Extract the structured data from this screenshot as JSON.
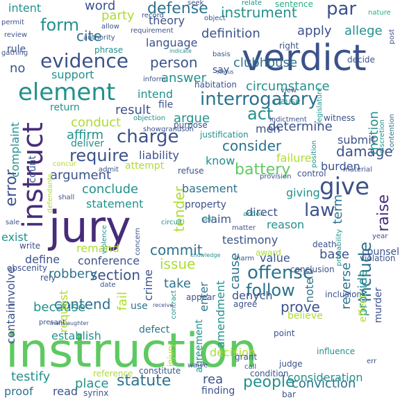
{
  "colors": {
    "background": "#ffffff",
    "palette": [
      "#440154",
      "#472c7a",
      "#3b528b",
      "#2c728e",
      "#21918c",
      "#28ae80",
      "#5ec962",
      "#addc30",
      "#fde725"
    ]
  },
  "words": [
    {
      "text": "instruction",
      "color": "#5ec962"
    },
    {
      "text": "verdict",
      "color": "#3b528b"
    },
    {
      "text": "jury",
      "color": "#472c7a"
    },
    {
      "text": "element",
      "color": "#21918c"
    },
    {
      "text": "interrogatory",
      "color": "#2c728e"
    },
    {
      "text": "instruct",
      "color": "#472c7a"
    },
    {
      "text": "evidence",
      "color": "#3b528b"
    },
    {
      "text": "charge",
      "color": "#3b528b"
    },
    {
      "text": "offense",
      "color": "#2c728e"
    },
    {
      "text": "give",
      "color": "#3b528b"
    },
    {
      "text": "require",
      "color": "#3b528b"
    },
    {
      "text": "follow",
      "color": "#2c728e"
    },
    {
      "text": "statute",
      "color": "#2c728e"
    },
    {
      "text": "include",
      "color": "#2c728e"
    },
    {
      "text": "form",
      "color": "#21918c"
    },
    {
      "text": "defense",
      "color": "#2c728e"
    },
    {
      "text": "party",
      "color": "#addc30"
    },
    {
      "text": "par",
      "color": "#3b528b"
    },
    {
      "text": "instrument",
      "color": "#21918c"
    },
    {
      "text": "error",
      "color": "#3b528b"
    },
    {
      "text": "section",
      "color": "#3b528b"
    },
    {
      "text": "battery",
      "color": "#5ec962"
    },
    {
      "text": "consider",
      "color": "#2c728e"
    },
    {
      "text": "person",
      "color": "#3b528b"
    },
    {
      "text": "issue",
      "color": "#addc30"
    },
    {
      "text": "people",
      "color": "#21918c"
    },
    {
      "text": "law",
      "color": "#3b528b"
    },
    {
      "text": "act",
      "color": "#21918c"
    },
    {
      "text": "conviction",
      "color": "#2c728e"
    },
    {
      "text": "determine",
      "color": "#3b528b"
    },
    {
      "text": "damage",
      "color": "#3b528b"
    },
    {
      "text": "tender",
      "color": "#addc30"
    },
    {
      "text": "commit",
      "color": "#2c728e"
    },
    {
      "text": "contend",
      "color": "#2c728e"
    },
    {
      "text": "prove",
      "color": "#3b528b"
    },
    {
      "text": "cause",
      "color": "#2c728e"
    },
    {
      "text": "raise",
      "color": "#472c7a"
    },
    {
      "text": "clubhouse",
      "color": "#2c728e"
    },
    {
      "text": "definition",
      "color": "#3b528b"
    },
    {
      "text": "apply",
      "color": "#3b528b"
    },
    {
      "text": "allege",
      "color": "#21918c"
    },
    {
      "text": "language",
      "color": "#3b528b"
    },
    {
      "text": "theory",
      "color": "#3b528b"
    },
    {
      "text": "cite",
      "color": "#2c728e"
    },
    {
      "text": "word",
      "color": "#3b528b"
    },
    {
      "text": "intent",
      "color": "#21918c"
    },
    {
      "text": "no",
      "color": "#3b528b"
    },
    {
      "text": "answer",
      "color": "#21918c"
    },
    {
      "text": "circumstance",
      "color": "#21918c"
    },
    {
      "text": "intend",
      "color": "#21918c"
    },
    {
      "text": "result",
      "color": "#3b528b"
    },
    {
      "text": "argue",
      "color": "#21918c"
    },
    {
      "text": "men",
      "color": "#3b528b"
    },
    {
      "text": "motion",
      "color": "#21918c"
    },
    {
      "text": "conduct",
      "color": "#addc30"
    },
    {
      "text": "affirm",
      "color": "#21918c"
    },
    {
      "text": "submit",
      "color": "#3b528b"
    },
    {
      "text": "failure",
      "color": "#addc30"
    },
    {
      "text": "know",
      "color": "#21918c"
    },
    {
      "text": "liability",
      "color": "#3b528b"
    },
    {
      "text": "argument",
      "color": "#3b528b"
    },
    {
      "text": "burden",
      "color": "#3b528b"
    },
    {
      "text": "conclude",
      "color": "#21918c"
    },
    {
      "text": "giving",
      "color": "#21918c"
    },
    {
      "text": "basement",
      "color": "#2c728e"
    },
    {
      "text": "statement",
      "color": "#21918c"
    },
    {
      "text": "direct",
      "color": "#3b528b"
    },
    {
      "text": "term",
      "color": "#2c728e"
    },
    {
      "text": "claim",
      "color": "#3b528b"
    },
    {
      "text": "reason",
      "color": "#21918c"
    },
    {
      "text": "testimony",
      "color": "#3b528b"
    },
    {
      "text": "exist",
      "color": "#21918c"
    },
    {
      "text": "remand",
      "color": "#addc30"
    },
    {
      "text": "define",
      "color": "#3b528b"
    },
    {
      "text": "conference",
      "color": "#3b528b"
    },
    {
      "text": "base",
      "color": "#3b528b"
    },
    {
      "text": "value",
      "color": "#3b528b"
    },
    {
      "text": "robbery",
      "color": "#2c728e"
    },
    {
      "text": "because",
      "color": "#21918c"
    },
    {
      "text": "fail",
      "color": "#addc30"
    },
    {
      "text": "crime",
      "color": "#3b528b"
    },
    {
      "text": "take",
      "color": "#2c728e"
    },
    {
      "text": "enter",
      "color": "#2c728e"
    },
    {
      "text": "amendment",
      "color": "#21918c"
    },
    {
      "text": "denych",
      "color": "#3b528b"
    },
    {
      "text": "note",
      "color": "#2c728e"
    },
    {
      "text": "reverse",
      "color": "#2c728e"
    },
    {
      "text": "provide",
      "color": "#21918c"
    },
    {
      "text": "contain",
      "color": "#3b528b"
    },
    {
      "text": "involve",
      "color": "#3b528b"
    },
    {
      "text": "complaint",
      "color": "#21918c"
    },
    {
      "text": "count",
      "color": "#3b528b"
    },
    {
      "text": "testify",
      "color": "#21918c"
    },
    {
      "text": "proof",
      "color": "#2c728e"
    },
    {
      "text": "read",
      "color": "#3b528b"
    },
    {
      "text": "place",
      "color": "#21918c"
    },
    {
      "text": "decision",
      "color": "#addc30"
    },
    {
      "text": "defect",
      "color": "#2c728e"
    },
    {
      "text": "establish",
      "color": "#21918c"
    },
    {
      "text": "agreement",
      "color": "#21918c"
    },
    {
      "text": "rea",
      "color": "#3b528b"
    },
    {
      "text": "consideration",
      "color": "#21918c"
    },
    {
      "text": "finding",
      "color": "#3b528b"
    },
    {
      "text": "support",
      "color": "#21918c"
    },
    {
      "text": "rule",
      "color": "#3b528b"
    },
    {
      "text": "say",
      "color": "#3b528b"
    },
    {
      "text": "clause",
      "color": "#21918c"
    },
    {
      "text": "habitation",
      "color": "#3b528b"
    },
    {
      "text": "return",
      "color": "#21918c"
    },
    {
      "text": "file",
      "color": "#3b528b"
    },
    {
      "text": "deliver",
      "color": "#21918c"
    },
    {
      "text": "attempt",
      "color": "#addc30"
    },
    {
      "text": "refuse",
      "color": "#3b528b"
    },
    {
      "text": "property",
      "color": "#3b528b"
    },
    {
      "text": "purpose",
      "color": "#3b528b"
    },
    {
      "text": "justification",
      "color": "#21918c"
    },
    {
      "text": "indictment",
      "color": "#3b528b"
    },
    {
      "text": "witness",
      "color": "#3b528b"
    },
    {
      "text": "contention",
      "color": "#2c728e"
    },
    {
      "text": "discretion",
      "color": "#21918c"
    },
    {
      "text": "post",
      "color": "#3b528b"
    },
    {
      "text": "sentence",
      "color": "#28ae80"
    },
    {
      "text": "seek",
      "color": "#3b528b"
    },
    {
      "text": "relate",
      "color": "#21918c"
    },
    {
      "text": "record",
      "color": "#3b528b"
    },
    {
      "text": "object",
      "color": "#3b528b"
    },
    {
      "text": "permit",
      "color": "#3b528b"
    },
    {
      "text": "review",
      "color": "#3b528b"
    },
    {
      "text": "authority",
      "color": "#3b528b"
    },
    {
      "text": "allow",
      "color": "#3b528b"
    },
    {
      "text": "requirement",
      "color": "#3b528b"
    },
    {
      "text": "nature",
      "color": "#28ae80"
    },
    {
      "text": "decide",
      "color": "#3b528b"
    },
    {
      "text": "right",
      "color": "#3b528b"
    },
    {
      "text": "phrase",
      "color": "#21918c"
    },
    {
      "text": "indicate",
      "color": "#21918c"
    },
    {
      "text": "basis",
      "color": "#3b528b"
    },
    {
      "text": "status",
      "color": "#3b528b"
    },
    {
      "text": "gathing",
      "color": "#3b528b"
    },
    {
      "text": "inform",
      "color": "#3b528b"
    },
    {
      "text": "view",
      "color": "#3b528b"
    },
    {
      "text": "legislature",
      "color": "#21918c"
    },
    {
      "text": "objection",
      "color": "#21918c"
    },
    {
      "text": "show",
      "color": "#3b528b"
    },
    {
      "text": "grandson",
      "color": "#3b528b"
    },
    {
      "text": "concur",
      "color": "#addc30"
    },
    {
      "text": "admit",
      "color": "#3b528b"
    },
    {
      "text": "position",
      "color": "#21918c"
    },
    {
      "text": "control",
      "color": "#3b528b"
    },
    {
      "text": "material",
      "color": "#3b528b"
    },
    {
      "text": "provision",
      "color": "#3b528b"
    },
    {
      "text": "defendants",
      "color": "#addc30"
    },
    {
      "text": "shall",
      "color": "#3b528b"
    },
    {
      "text": "sale",
      "color": "#3b528b"
    },
    {
      "text": "circuit",
      "color": "#21918c"
    },
    {
      "text": "sell",
      "color": "#21918c"
    },
    {
      "text": "action",
      "color": "#21918c"
    },
    {
      "text": "matter",
      "color": "#3b528b"
    },
    {
      "text": "violence",
      "color": "#21918c"
    },
    {
      "text": "concern",
      "color": "#3b528b"
    },
    {
      "text": "award",
      "color": "#addc30"
    },
    {
      "text": "death",
      "color": "#3b528b"
    },
    {
      "text": "probability",
      "color": "#21918c"
    },
    {
      "text": "year",
      "color": "#3b528b"
    },
    {
      "text": "counsel",
      "color": "#3b528b"
    },
    {
      "text": "write",
      "color": "#3b528b"
    },
    {
      "text": "knowledge",
      "color": "#21918c"
    },
    {
      "text": "harm",
      "color": "#3b528b"
    },
    {
      "text": "conclusion",
      "color": "#3b528b"
    },
    {
      "text": "obscenity",
      "color": "#3b528b"
    },
    {
      "text": "violation",
      "color": "#3b528b"
    },
    {
      "text": "rely",
      "color": "#3b528b"
    },
    {
      "text": "request",
      "color": "#addc30"
    },
    {
      "text": "date",
      "color": "#3b528b"
    },
    {
      "text": "contract",
      "color": "#21918c"
    },
    {
      "text": "appear",
      "color": "#3b528b"
    },
    {
      "text": "agree",
      "color": "#3b528b"
    },
    {
      "text": "inclusion",
      "color": "#3b528b"
    },
    {
      "text": "murder",
      "color": "#3b528b"
    },
    {
      "text": "effect",
      "color": "#addc30"
    },
    {
      "text": "use",
      "color": "#2c728e"
    },
    {
      "text": "receive",
      "color": "#3b528b"
    },
    {
      "text": "believe",
      "color": "#addc30"
    },
    {
      "text": "point",
      "color": "#3b528b"
    },
    {
      "text": "manslaughter",
      "color": "#3b528b"
    },
    {
      "text": "presant",
      "color": "#3b528b"
    },
    {
      "text": "injury",
      "color": "#addc30"
    },
    {
      "text": "influence",
      "color": "#21918c"
    },
    {
      "text": "err",
      "color": "#3b528b"
    },
    {
      "text": "waive",
      "color": "#3b528b"
    },
    {
      "text": "grant",
      "color": "#3b528b"
    },
    {
      "text": "call",
      "color": "#3b528b"
    },
    {
      "text": "judge",
      "color": "#3b528b"
    },
    {
      "text": "reference",
      "color": "#addc30"
    },
    {
      "text": "constitute",
      "color": "#3b528b"
    },
    {
      "text": "condition",
      "color": "#3b528b"
    },
    {
      "text": "syrinx",
      "color": "#3b528b"
    },
    {
      "text": "bar",
      "color": "#3b528b"
    }
  ]
}
